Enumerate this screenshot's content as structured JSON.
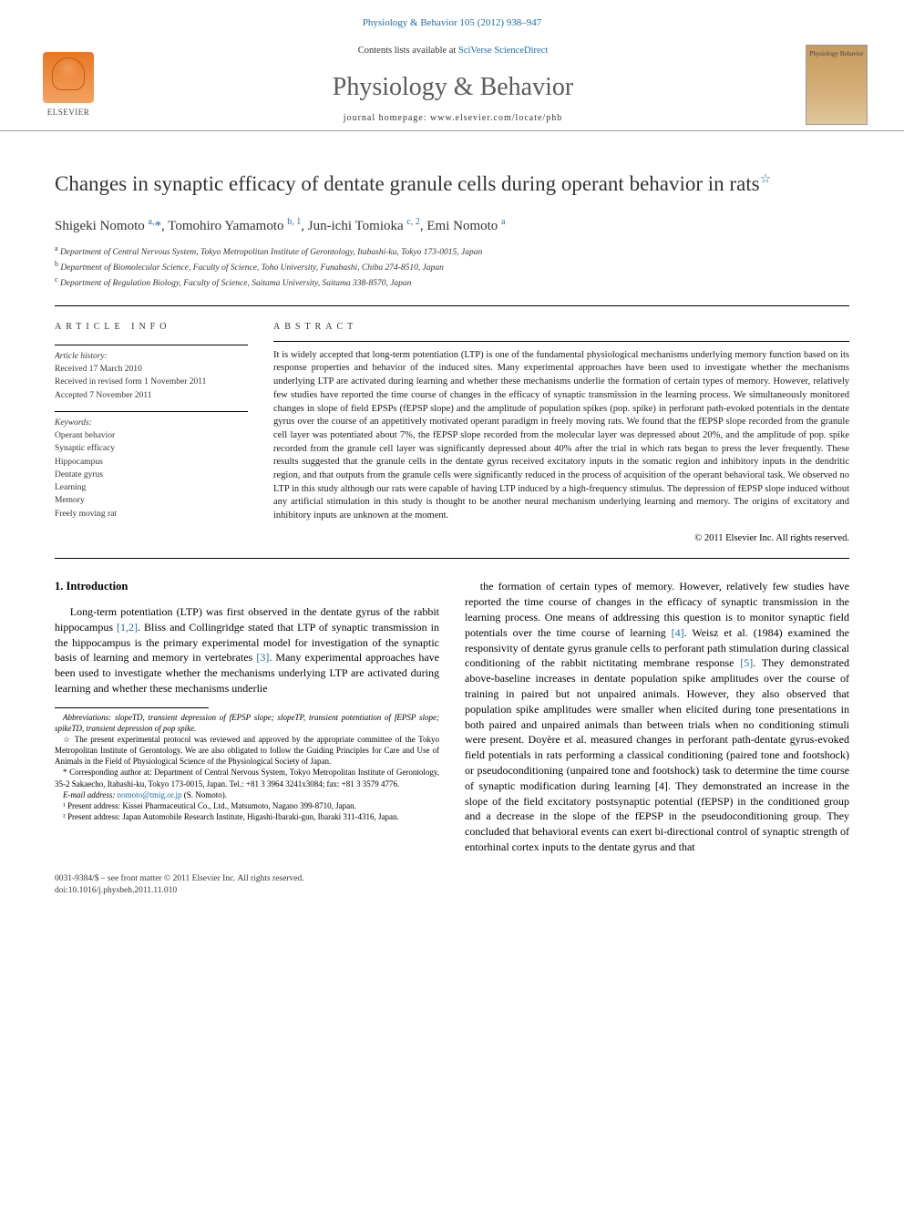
{
  "header": {
    "top_link": "Physiology & Behavior 105 (2012) 938–947",
    "contents_prefix": "Contents lists available at ",
    "contents_link": "SciVerse ScienceDirect",
    "journal_name": "Physiology & Behavior",
    "homepage_label": "journal homepage: www.elsevier.com/locate/phb",
    "publisher": "ELSEVIER",
    "cover_title": "Physiology Behavior"
  },
  "article": {
    "title": "Changes in synaptic efficacy of dentate granule cells during operant behavior in rats",
    "star_note": "☆",
    "authors_html": "Shigeki Nomoto <sup>a,</sup><span class='corr'>*</span>, Tomohiro Yamamoto <sup>b, 1</sup>, Jun-ichi Tomioka <sup>c, 2</sup>, Emi Nomoto <sup>a</sup>",
    "affiliations": [
      {
        "sup": "a",
        "text": "Department of Central Nervous System, Tokyo Metropolitan Institute of Gerontology, Itabashi-ku, Tokyo 173-0015, Japan"
      },
      {
        "sup": "b",
        "text": "Department of Biomolecular Science, Faculty of Science, Toho University, Funabashi, Chiba 274-8510, Japan"
      },
      {
        "sup": "c",
        "text": "Department of Regulation Biology, Faculty of Science, Saitama University, Saitama 338-8570, Japan"
      }
    ]
  },
  "info": {
    "heading": "ARTICLE INFO",
    "history_heading": "Article history:",
    "history": [
      "Received 17 March 2010",
      "Received in revised form 1 November 2011",
      "Accepted 7 November 2011"
    ],
    "keywords_heading": "Keywords:",
    "keywords": [
      "Operant behavior",
      "Synaptic efficacy",
      "Hippocampus",
      "Dentate gyrus",
      "Learning",
      "Memory",
      "Freely moving rat"
    ]
  },
  "abstract": {
    "heading": "ABSTRACT",
    "body": "It is widely accepted that long-term potentiation (LTP) is one of the fundamental physiological mechanisms underlying memory function based on its response properties and behavior of the induced sites. Many experimental approaches have been used to investigate whether the mechanisms underlying LTP are activated during learning and whether these mechanisms underlie the formation of certain types of memory. However, relatively few studies have reported the time course of changes in the efficacy of synaptic transmission in the learning process. We simultaneously monitored changes in slope of field EPSPs (fEPSP slope) and the amplitude of population spikes (pop. spike) in perforant path-evoked potentials in the dentate gyrus over the course of an appetitively motivated operant paradigm in freely moving rats. We found that the fEPSP slope recorded from the granule cell layer was potentiated about 7%, the fEPSP slope recorded from the molecular layer was depressed about 20%, and the amplitude of pop. spike recorded from the granule cell layer was significantly depressed about 40% after the trial in which rats began to press the lever frequently. These results suggested that the granule cells in the dentate gyrus received excitatory inputs in the somatic region and inhibitory inputs in the dendritic region, and that outputs from the granule cells were significantly reduced in the process of acquisition of the operant behavioral task. We observed no LTP in this study although our rats were capable of having LTP induced by a high-frequency stimulus. The depression of fEPSP slope induced without any artificial stimulation in this study is thought to be another neural mechanism underlying learning and memory. The origins of excitatory and inhibitory inputs are unknown at the moment.",
    "copyright": "© 2011 Elsevier Inc. All rights reserved."
  },
  "body": {
    "section_heading": "1. Introduction",
    "para1": "Long-term potentiation (LTP) was first observed in the dentate gyrus of the rabbit hippocampus [1,2]. Bliss and Collingridge stated that LTP of synaptic transmission in the hippocampus is the primary experimental model for investigation of the synaptic basis of learning and memory in vertebrates [3]. Many experimental approaches have been used to investigate whether the mechanisms underlying LTP are activated during learning and whether these mechanisms underlie",
    "para2": "the formation of certain types of memory. However, relatively few studies have reported the time course of changes in the efficacy of synaptic transmission in the learning process. One means of addressing this question is to monitor synaptic field potentials over the time course of learning [4]. Weisz et al. (1984) examined the responsivity of dentate gyrus granule cells to perforant path stimulation during classical conditioning of the rabbit nictitating membrane response [5]. They demonstrated above-baseline increases in dentate population spike amplitudes over the course of training in paired but not unpaired animals. However, they also observed that population spike amplitudes were smaller when elicited during tone presentations in both paired and unpaired animals than between trials when no conditioning stimuli were present. Doyère et al. measured changes in perforant path-dentate gyrus-evoked field potentials in rats performing a classical conditioning (paired tone and footshock) or pseudoconditioning (unpaired tone and footshock) task to determine the time course of synaptic modification during learning [4]. They demonstrated an increase in the slope of the field excitatory postsynaptic potential (fEPSP) in the conditioned group and a decrease in the slope of the fEPSP in the pseudoconditioning group. They concluded that behavioral events can exert bi-directional control of synaptic strength of entorhinal cortex inputs to the dentate gyrus and that",
    "refs": {
      "r12": "[1,2]",
      "r3": "[3]",
      "r4a": "[4]",
      "r5": "[5]",
      "r4b": "[4]"
    }
  },
  "footnotes": {
    "abbrev": "Abbreviations: slopeTD, transient depression of fEPSP slope; slopeTP, transient potentiation of fEPSP slope; spikeTD, transient depression of pop spike.",
    "star": "☆ The present experimental protocol was reviewed and approved by the appropriate committee of the Tokyo Metropolitan Institute of Gerontology. We are also obligated to follow the Guiding Principles for Care and Use of Animals in the Field of Physiological Science of the Physiological Society of Japan.",
    "corr": "* Corresponding author at: Department of Central Nervous System, Tokyo Metropolitan Institute of Gerontology, 35-2 Sakaecho, Itabashi-ku, Tokyo 173-0015, Japan. Tel.: +81 3 3964 3241x3084; fax: +81 3 3579 4776.",
    "email_label": "E-mail address: ",
    "email": "nomoto@tmig.or.jp",
    "email_suffix": " (S. Nomoto).",
    "n1": "¹ Present address: Kissei Pharmaceutical Co., Ltd., Matsumoto, Nagano 399-8710, Japan.",
    "n2": "² Present address: Japan Automobile Research Institute, Higashi-Ibaraki-gun, Ibaraki 311-4316, Japan."
  },
  "footer": {
    "line1": "0031-9384/$ – see front matter © 2011 Elsevier Inc. All rights reserved.",
    "line2": "doi:10.1016/j.physbeh.2011.11.010"
  },
  "colors": {
    "link": "#1b6ca8",
    "text": "#000000",
    "heading": "#5a5a5a",
    "elsevier_orange": "#e87722"
  }
}
